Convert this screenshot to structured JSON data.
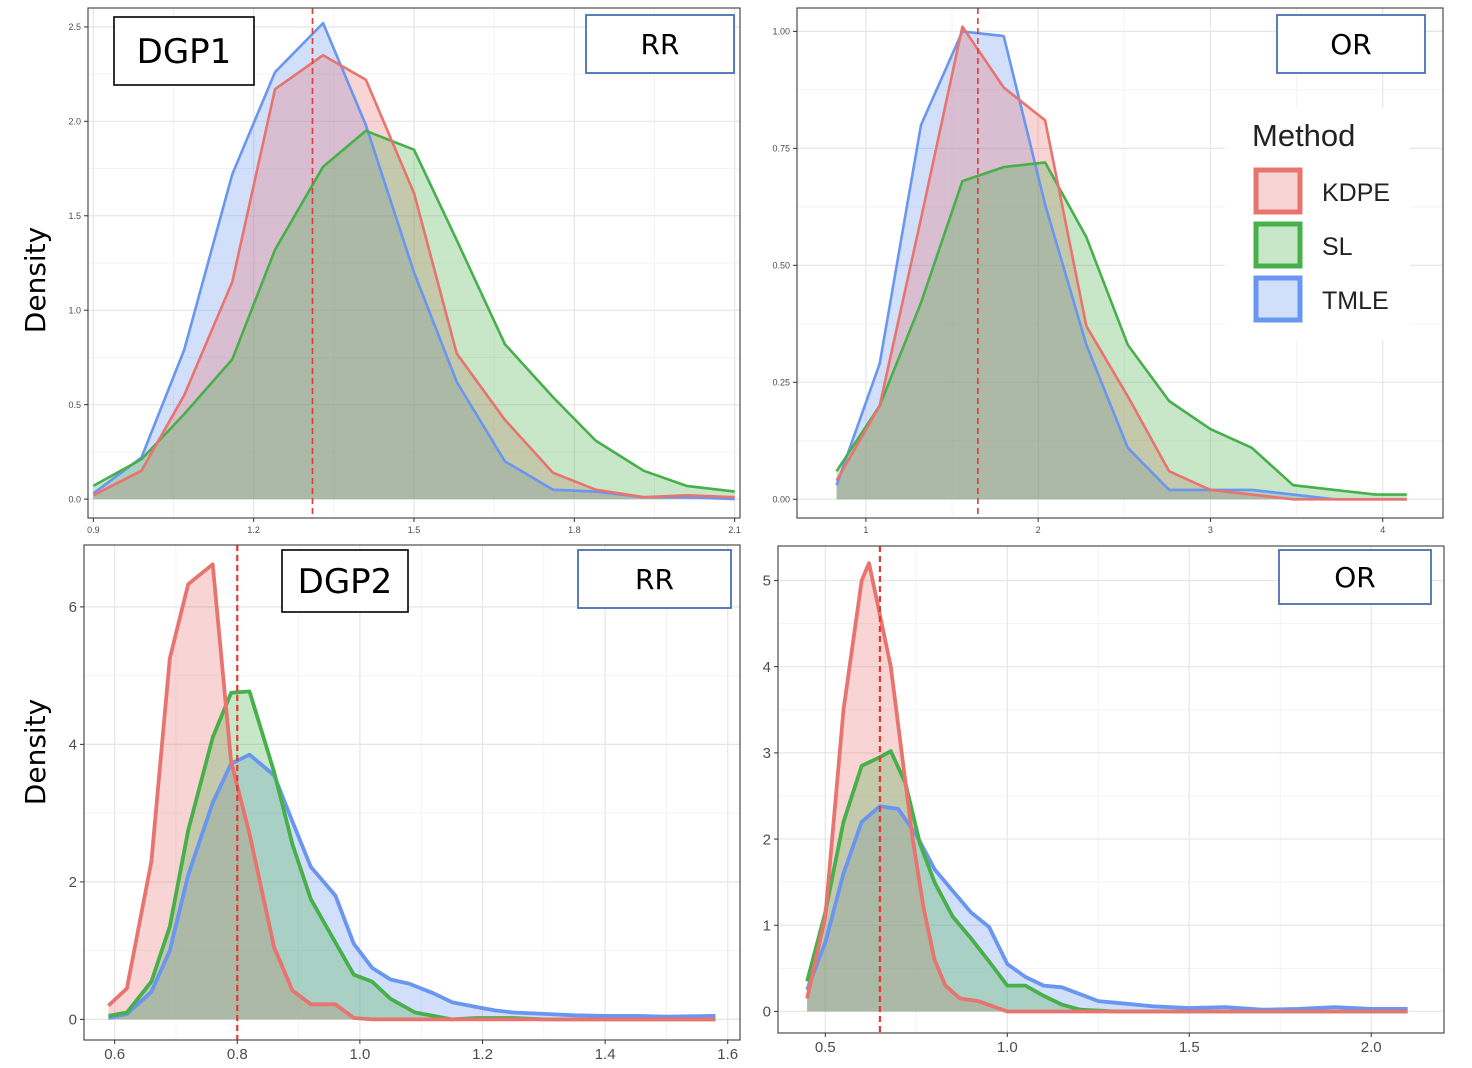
{
  "figure": {
    "y_label": "Density",
    "legend": {
      "title": "Method",
      "entries": [
        {
          "name": "KDPE",
          "color": "#e8746f"
        },
        {
          "name": "SL",
          "color": "#48b04a"
        },
        {
          "name": "TMLE",
          "color": "#6996f0"
        }
      ]
    }
  },
  "chart_data": [
    {
      "type": "area",
      "dgp_label": "DGP1",
      "estimand_label": "RR",
      "true_value": 1.31,
      "xlim": [
        0.89,
        2.11
      ],
      "ylim": [
        -0.1,
        2.6
      ],
      "xticks": [
        {
          "v": 0.9,
          "t": "0.9"
        },
        {
          "v": 1.2,
          "t": "1.2"
        },
        {
          "v": 1.5,
          "t": "1.5"
        },
        {
          "v": 1.8,
          "t": "1.8"
        },
        {
          "v": 2.1,
          "t": "2.1"
        }
      ],
      "yticks": [
        {
          "v": 0,
          "t": "0.0"
        },
        {
          "v": 0.5,
          "t": "0.5"
        },
        {
          "v": 1.0,
          "t": "1.0"
        },
        {
          "v": 1.5,
          "t": "1.5"
        },
        {
          "v": 2.0,
          "t": "2.0"
        },
        {
          "v": 2.5,
          "t": "2.5"
        }
      ],
      "series": [
        {
          "name": "KDPE",
          "x": [
            0.9,
            0.99,
            1.07,
            1.16,
            1.24,
            1.33,
            1.41,
            1.5,
            1.58,
            1.67,
            1.76,
            1.84,
            1.93,
            2.01,
            2.1
          ],
          "y": [
            0.02,
            0.15,
            0.55,
            1.15,
            2.17,
            2.35,
            2.22,
            1.62,
            0.77,
            0.42,
            0.14,
            0.05,
            0.01,
            0.02,
            0.01
          ]
        },
        {
          "name": "SL",
          "x": [
            0.9,
            0.99,
            1.07,
            1.16,
            1.24,
            1.33,
            1.41,
            1.5,
            1.58,
            1.67,
            1.76,
            1.84,
            1.93,
            2.01,
            2.1
          ],
          "y": [
            0.07,
            0.21,
            0.45,
            0.74,
            1.32,
            1.76,
            1.95,
            1.85,
            1.37,
            0.82,
            0.54,
            0.31,
            0.15,
            0.07,
            0.04
          ]
        },
        {
          "name": "TMLE",
          "x": [
            0.9,
            0.99,
            1.07,
            1.16,
            1.24,
            1.33,
            1.41,
            1.5,
            1.58,
            1.67,
            1.76,
            1.84,
            1.93,
            2.01,
            2.1
          ],
          "y": [
            0.03,
            0.22,
            0.79,
            1.72,
            2.26,
            2.52,
            1.98,
            1.2,
            0.62,
            0.2,
            0.05,
            0.04,
            0.01,
            0.01,
            0.0
          ]
        }
      ]
    },
    {
      "type": "area",
      "dgp_label": "",
      "estimand_label": "OR",
      "true_value": 1.65,
      "xlim": [
        0.6,
        4.35
      ],
      "ylim": [
        -0.04,
        1.05
      ],
      "xticks": [
        {
          "v": 1,
          "t": "1"
        },
        {
          "v": 2,
          "t": "2"
        },
        {
          "v": 3,
          "t": "3"
        },
        {
          "v": 4,
          "t": "4"
        }
      ],
      "yticks": [
        {
          "v": 0,
          "t": "0.00"
        },
        {
          "v": 0.25,
          "t": "0.25"
        },
        {
          "v": 0.5,
          "t": "0.50"
        },
        {
          "v": 0.75,
          "t": "0.75"
        },
        {
          "v": 1.0,
          "t": "1.00"
        }
      ],
      "series": [
        {
          "name": "KDPE",
          "x": [
            0.83,
            1.08,
            1.32,
            1.56,
            1.8,
            2.04,
            2.28,
            2.52,
            2.76,
            3.0,
            3.24,
            3.48,
            3.72,
            3.96,
            4.14
          ],
          "y": [
            0.04,
            0.2,
            0.6,
            1.01,
            0.88,
            0.81,
            0.37,
            0.22,
            0.06,
            0.02,
            0.01,
            0.0,
            0.0,
            0.0,
            0.0
          ]
        },
        {
          "name": "SL",
          "x": [
            0.83,
            1.08,
            1.32,
            1.56,
            1.8,
            2.04,
            2.28,
            2.52,
            2.76,
            3.0,
            3.24,
            3.48,
            3.72,
            3.96,
            4.14
          ],
          "y": [
            0.06,
            0.2,
            0.42,
            0.68,
            0.71,
            0.72,
            0.56,
            0.33,
            0.21,
            0.15,
            0.11,
            0.03,
            0.02,
            0.01,
            0.01
          ]
        },
        {
          "name": "TMLE",
          "x": [
            0.83,
            1.08,
            1.32,
            1.56,
            1.8,
            2.04,
            2.28,
            2.52,
            2.76,
            3.0,
            3.24,
            3.48,
            3.72,
            3.96,
            4.14
          ],
          "y": [
            0.03,
            0.29,
            0.8,
            1.0,
            0.99,
            0.63,
            0.33,
            0.11,
            0.02,
            0.02,
            0.02,
            0.01,
            0.0,
            0.0,
            0.0
          ]
        }
      ]
    },
    {
      "type": "area",
      "dgp_label": "DGP2",
      "estimand_label": "RR",
      "true_value": 0.8,
      "xlim": [
        0.55,
        1.62
      ],
      "ylim": [
        -0.3,
        6.9
      ],
      "xticks": [
        {
          "v": 0.6,
          "t": "0.6"
        },
        {
          "v": 0.8,
          "t": "0.8"
        },
        {
          "v": 1.0,
          "t": "1.0"
        },
        {
          "v": 1.2,
          "t": "1.2"
        },
        {
          "v": 1.4,
          "t": "1.4"
        },
        {
          "v": 1.6,
          "t": "1.6"
        }
      ],
      "yticks": [
        {
          "v": 0,
          "t": "0"
        },
        {
          "v": 2,
          "t": "2"
        },
        {
          "v": 4,
          "t": "4"
        },
        {
          "v": 6,
          "t": "6"
        }
      ],
      "series": [
        {
          "name": "KDPE",
          "x": [
            0.59,
            0.62,
            0.66,
            0.69,
            0.72,
            0.76,
            0.79,
            0.82,
            0.86,
            0.89,
            0.92,
            0.96,
            0.99,
            1.02,
            1.05,
            1.1,
            1.2,
            1.3,
            1.4,
            1.5,
            1.58
          ],
          "y": [
            0.2,
            0.45,
            2.3,
            5.25,
            6.33,
            6.62,
            3.75,
            2.7,
            1.05,
            0.42,
            0.22,
            0.22,
            0.02,
            0.0,
            0.0,
            0.0,
            0.0,
            0.0,
            0.0,
            0.0,
            0.0
          ]
        },
        {
          "name": "SL",
          "x": [
            0.59,
            0.62,
            0.66,
            0.69,
            0.72,
            0.76,
            0.79,
            0.82,
            0.86,
            0.89,
            0.92,
            0.96,
            0.99,
            1.02,
            1.05,
            1.09,
            1.12,
            1.15,
            1.19,
            1.25,
            1.3,
            1.4,
            1.5,
            1.58
          ],
          "y": [
            0.05,
            0.1,
            0.55,
            1.35,
            2.75,
            4.1,
            4.75,
            4.77,
            3.6,
            2.55,
            1.75,
            1.12,
            0.65,
            0.55,
            0.3,
            0.1,
            0.05,
            0.0,
            0.02,
            0.02,
            0.0,
            0.0,
            0.0,
            0.0
          ]
        },
        {
          "name": "TMLE",
          "x": [
            0.59,
            0.62,
            0.66,
            0.69,
            0.72,
            0.76,
            0.79,
            0.82,
            0.86,
            0.89,
            0.92,
            0.96,
            0.99,
            1.02,
            1.05,
            1.08,
            1.12,
            1.15,
            1.19,
            1.22,
            1.25,
            1.3,
            1.35,
            1.4,
            1.45,
            1.5,
            1.58
          ],
          "y": [
            0.02,
            0.08,
            0.4,
            1.0,
            2.1,
            3.15,
            3.72,
            3.85,
            3.55,
            2.88,
            2.22,
            1.8,
            1.1,
            0.75,
            0.58,
            0.52,
            0.38,
            0.25,
            0.18,
            0.13,
            0.1,
            0.08,
            0.06,
            0.05,
            0.05,
            0.04,
            0.05
          ]
        }
      ]
    },
    {
      "type": "area",
      "dgp_label": "",
      "estimand_label": "OR",
      "true_value": 0.65,
      "xlim": [
        0.37,
        2.2
      ],
      "ylim": [
        -0.25,
        5.4
      ],
      "xticks": [
        {
          "v": 0.5,
          "t": "0.5"
        },
        {
          "v": 1.0,
          "t": "1.0"
        },
        {
          "v": 1.5,
          "t": "1.5"
        },
        {
          "v": 2.0,
          "t": "2.0"
        }
      ],
      "yticks": [
        {
          "v": 0,
          "t": "0"
        },
        {
          "v": 1,
          "t": "1"
        },
        {
          "v": 2,
          "t": "2"
        },
        {
          "v": 3,
          "t": "3"
        },
        {
          "v": 4,
          "t": "4"
        },
        {
          "v": 5,
          "t": "5"
        }
      ],
      "series": [
        {
          "name": "KDPE",
          "x": [
            0.45,
            0.5,
            0.55,
            0.6,
            0.62,
            0.65,
            0.68,
            0.71,
            0.74,
            0.77,
            0.8,
            0.83,
            0.87,
            0.92,
            1.0,
            1.1,
            1.3,
            1.5,
            1.7,
            1.9,
            2.1
          ],
          "y": [
            0.15,
            1.1,
            3.5,
            5.0,
            5.2,
            4.6,
            4.0,
            3.0,
            2.0,
            1.2,
            0.6,
            0.3,
            0.15,
            0.12,
            0.0,
            0.0,
            0.0,
            0.0,
            0.0,
            0.0,
            0.0
          ]
        },
        {
          "name": "SL",
          "x": [
            0.45,
            0.5,
            0.55,
            0.6,
            0.65,
            0.68,
            0.72,
            0.76,
            0.8,
            0.85,
            0.9,
            0.95,
            1.0,
            1.05,
            1.1,
            1.15,
            1.2,
            1.3,
            1.4,
            1.6,
            1.8,
            2.1
          ],
          "y": [
            0.35,
            1.15,
            2.2,
            2.85,
            2.95,
            3.02,
            2.65,
            1.95,
            1.5,
            1.1,
            0.85,
            0.58,
            0.3,
            0.3,
            0.18,
            0.08,
            0.02,
            0.0,
            0.0,
            0.0,
            0.0,
            0.0
          ]
        },
        {
          "name": "TMLE",
          "x": [
            0.45,
            0.5,
            0.55,
            0.6,
            0.65,
            0.7,
            0.75,
            0.8,
            0.85,
            0.9,
            0.95,
            1.0,
            1.05,
            1.1,
            1.15,
            1.2,
            1.25,
            1.3,
            1.4,
            1.5,
            1.6,
            1.7,
            1.8,
            1.9,
            2.0,
            2.1
          ],
          "y": [
            0.25,
            0.8,
            1.6,
            2.2,
            2.38,
            2.35,
            2.05,
            1.65,
            1.4,
            1.15,
            0.98,
            0.55,
            0.4,
            0.3,
            0.28,
            0.2,
            0.12,
            0.1,
            0.06,
            0.04,
            0.05,
            0.02,
            0.03,
            0.05,
            0.03,
            0.03
          ]
        }
      ]
    }
  ]
}
